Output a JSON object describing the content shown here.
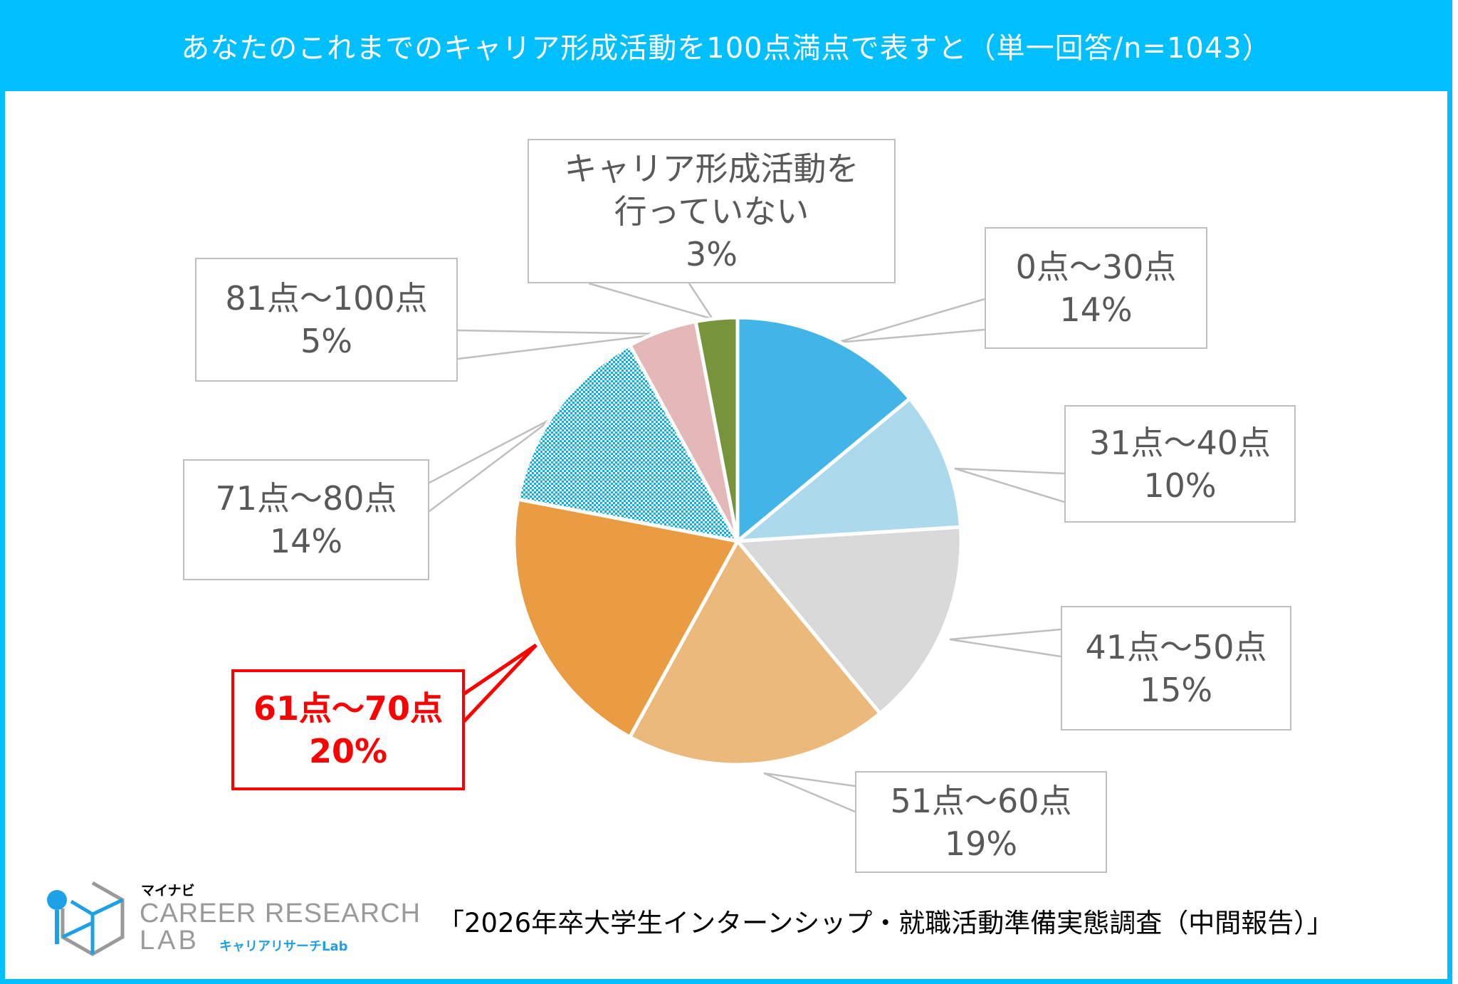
{
  "header": {
    "title": "あなたのこれまでのキャリア形成活動を100点満点で表すと（単一回答/n=1043）"
  },
  "chart_data": {
    "type": "pie",
    "title": "あなたのこれまでのキャリア形成活動を100点満点で表すと（単一回答/n=1043）",
    "start": "12 o'clock, clockwise",
    "slices": [
      {
        "label": "0点～30点",
        "value": 14,
        "value_label": "14%",
        "color": "#41b5e8"
      },
      {
        "label": "31点～40点",
        "value": 10,
        "value_label": "10%",
        "color": "#acd9ec"
      },
      {
        "label": "41点～50点",
        "value": 15,
        "value_label": "15%",
        "color": "#d9d9d9"
      },
      {
        "label": "51点～60点",
        "value": 19,
        "value_label": "19%",
        "color": "#ebb97b"
      },
      {
        "label": "61点～70点",
        "value": 20,
        "value_label": "20%",
        "color": "#e99c41",
        "highlight": true,
        "highlight_color": "#ff0000"
      },
      {
        "label": "71点～80点",
        "value": 14,
        "value_label": "14%",
        "color": "#00b0f0",
        "pattern": "dotted"
      },
      {
        "label": "81点～100点",
        "value": 5,
        "value_label": "5%",
        "color": "#e4b8b8"
      },
      {
        "label_lines": [
          "キャリア形成活動を",
          "行っていない"
        ],
        "label": "キャリア形成活動を行っていない",
        "value": 3,
        "value_label": "3%",
        "color": "#77933c"
      }
    ]
  },
  "footer": {
    "source": "「2026年卒大学生インターンシップ・就職活動準備実態調査（中間報告）」",
    "logo": {
      "brand": "マイナビ",
      "main": "CAREER RESEARCH",
      "lab": "LAB",
      "sub": "キャリアリサーチLab"
    }
  },
  "colors": {
    "accent": "#00bfff",
    "highlight": "#ff0000",
    "label_text": "#595959"
  }
}
